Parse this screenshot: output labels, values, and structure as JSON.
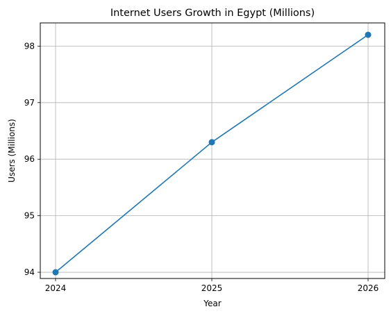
{
  "chart_data": {
    "type": "line",
    "title": "Internet Users Growth in Egypt (Millions)",
    "xlabel": "Year",
    "ylabel": "Users (Millions)",
    "x": [
      "2024",
      "2025",
      "2026"
    ],
    "series": [
      {
        "values": [
          94.0,
          96.3,
          98.2
        ],
        "color": "#1f77b4",
        "marker": "circle"
      }
    ],
    "xticks": [
      "2024",
      "2025",
      "2026"
    ],
    "yticks": [
      94,
      95,
      96,
      97,
      98
    ],
    "ylim": [
      93.89,
      98.41
    ],
    "grid": true
  }
}
